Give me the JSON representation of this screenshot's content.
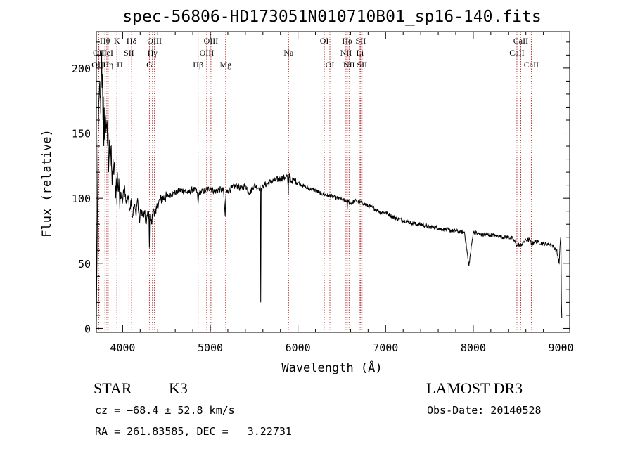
{
  "chart_data": {
    "type": "line",
    "title": "spec-56806-HD173051N010710B01_sp16-140.fits",
    "xlabel": "Wavelength (Å)",
    "ylabel": "Flux (relative)",
    "xlim": [
      3700,
      9100
    ],
    "ylim": [
      -3,
      228
    ],
    "xticks": [
      4000,
      5000,
      6000,
      7000,
      8000,
      9000
    ],
    "yticks": [
      0,
      50,
      100,
      150,
      200
    ],
    "grid": false,
    "series": [
      {
        "name": "flux",
        "color": "#000000",
        "x": [
          3700,
          3705,
          3712,
          3720,
          3730,
          3740,
          3750,
          3755,
          3760,
          3765,
          3770,
          3775,
          3780,
          3785,
          3790,
          3795,
          3800,
          3810,
          3820,
          3830,
          3835,
          3840,
          3850,
          3860,
          3870,
          3880,
          3890,
          3900,
          3910,
          3920,
          3930,
          3934,
          3940,
          3950,
          3960,
          3968,
          3975,
          3985,
          4000,
          4020,
          4040,
          4060,
          4080,
          4100,
          4110,
          4130,
          4150,
          4170,
          4190,
          4210,
          4230,
          4250,
          4270,
          4290,
          4300,
          4305,
          4310,
          4330,
          4350,
          4380,
          4400,
          4450,
          4500,
          4550,
          4600,
          4650,
          4700,
          4750,
          4800,
          4850,
          4861,
          4870,
          4900,
          4950,
          5000,
          5050,
          5100,
          5150,
          5170,
          5175,
          5180,
          5200,
          5250,
          5300,
          5350,
          5400,
          5450,
          5500,
          5550,
          5570,
          5575,
          5580,
          5590,
          5600,
          5650,
          5700,
          5750,
          5800,
          5850,
          5880,
          5890,
          5893,
          5897,
          5900,
          5920,
          5950,
          6000,
          6050,
          6100,
          6150,
          6200,
          6250,
          6300,
          6350,
          6400,
          6450,
          6500,
          6550,
          6560,
          6563,
          6566,
          6600,
          6650,
          6700,
          6750,
          6800,
          6850,
          6900,
          6950,
          7000,
          7050,
          7100,
          7150,
          7200,
          7250,
          7300,
          7350,
          7400,
          7450,
          7500,
          7550,
          7600,
          7650,
          7700,
          7750,
          7800,
          7850,
          7900,
          7950,
          8000,
          8050,
          8100,
          8150,
          8200,
          8250,
          8300,
          8350,
          8400,
          8450,
          8498,
          8542,
          8600,
          8650,
          8662,
          8700,
          8750,
          8800,
          8850,
          8900,
          8950,
          8980,
          8990,
          9000,
          9005,
          9010
        ],
        "y": [
          5,
          40,
          90,
          150,
          175,
          190,
          165,
          200,
          212,
          185,
          195,
          160,
          178,
          140,
          170,
          145,
          165,
          150,
          160,
          140,
          150,
          120,
          145,
          125,
          140,
          110,
          130,
          118,
          125,
          100,
          115,
          95,
          120,
          105,
          110,
          92,
          105,
          100,
          98,
          110,
          96,
          102,
          92,
          100,
          85,
          95,
          88,
          100,
          82,
          92,
          86,
          88,
          80,
          90,
          84,
          62,
          88,
          80,
          92,
          88,
          96,
          100,
          101,
          103,
          104,
          106,
          106,
          104,
          107,
          105,
          96,
          104,
          105,
          106,
          108,
          105,
          107,
          106,
          86,
          98,
          104,
          106,
          108,
          110,
          107,
          110,
          104,
          110,
          108,
          108,
          20,
          108,
          106,
          110,
          111,
          113,
          114,
          115,
          116,
          117,
          103,
          116,
          112,
          119,
          113,
          114,
          112,
          110,
          108,
          107,
          106,
          104,
          103,
          102,
          101,
          100,
          99,
          98,
          96,
          92,
          98,
          96,
          98,
          97,
          96,
          94,
          93,
          91,
          89,
          89,
          87,
          85,
          84,
          83,
          82,
          81,
          80,
          80,
          79,
          78,
          78,
          77,
          76,
          76,
          75,
          75,
          74,
          74,
          48,
          74,
          73,
          72,
          72,
          72,
          71,
          71,
          70,
          70,
          69,
          64,
          64,
          68,
          68,
          64,
          67,
          66,
          65,
          65,
          64,
          60,
          50,
          64,
          70,
          20,
          8
        ]
      }
    ],
    "lines": [
      {
        "label": "OII",
        "x": 3727,
        "row": 1
      },
      {
        "label": "OIII",
        "x": 3729,
        "row": 2
      },
      {
        "label": "Hθ",
        "x": 3798,
        "row": 0
      },
      {
        "label": "HeI",
        "x": 3820,
        "row": 1
      },
      {
        "label": "Hη",
        "x": 3835,
        "row": 2
      },
      {
        "label": "K",
        "x": 3934,
        "row": 0
      },
      {
        "label": "SII",
        "x": 4072,
        "row": 1
      },
      {
        "label": "H",
        "x": 3968,
        "row": 2
      },
      {
        "label": "Hδ",
        "x": 4102,
        "row": 0
      },
      {
        "label": "OIII",
        "x": 4363,
        "row": 0
      },
      {
        "label": "Hγ",
        "x": 4340,
        "row": 1
      },
      {
        "label": "G",
        "x": 4305,
        "row": 2
      },
      {
        "label": "OIII",
        "x": 5007,
        "row": 0
      },
      {
        "label": "OIII",
        "x": 4959,
        "row": 1
      },
      {
        "label": "Hβ",
        "x": 4861,
        "row": 2
      },
      {
        "label": "Mg",
        "x": 5175,
        "row": 2
      },
      {
        "label": "Na",
        "x": 5893,
        "row": 1
      },
      {
        "label": "OI",
        "x": 6300,
        "row": 0
      },
      {
        "label": "OI",
        "x": 6364,
        "row": 2
      },
      {
        "label": "Hα",
        "x": 6563,
        "row": 0
      },
      {
        "label": "SII",
        "x": 6716,
        "row": 0
      },
      {
        "label": "NII",
        "x": 6548,
        "row": 1
      },
      {
        "label": "Li",
        "x": 6708,
        "row": 1
      },
      {
        "label": "NII",
        "x": 6583,
        "row": 2
      },
      {
        "label": "SII",
        "x": 6731,
        "row": 2
      },
      {
        "label": "CaII",
        "x": 8542,
        "row": 0
      },
      {
        "label": "CaII",
        "x": 8498,
        "row": 1
      },
      {
        "label": "CaII",
        "x": 8662,
        "row": 2
      }
    ]
  },
  "info": {
    "object_class": "STAR",
    "subclass": "K3",
    "survey": "LAMOST DR3",
    "cz_line": "cz = −68.4 ± 52.8 km/s",
    "obs_date_line": "Obs-Date: 20140528",
    "coords_line": "RA = 261.83585, DEC =   3.22731"
  }
}
